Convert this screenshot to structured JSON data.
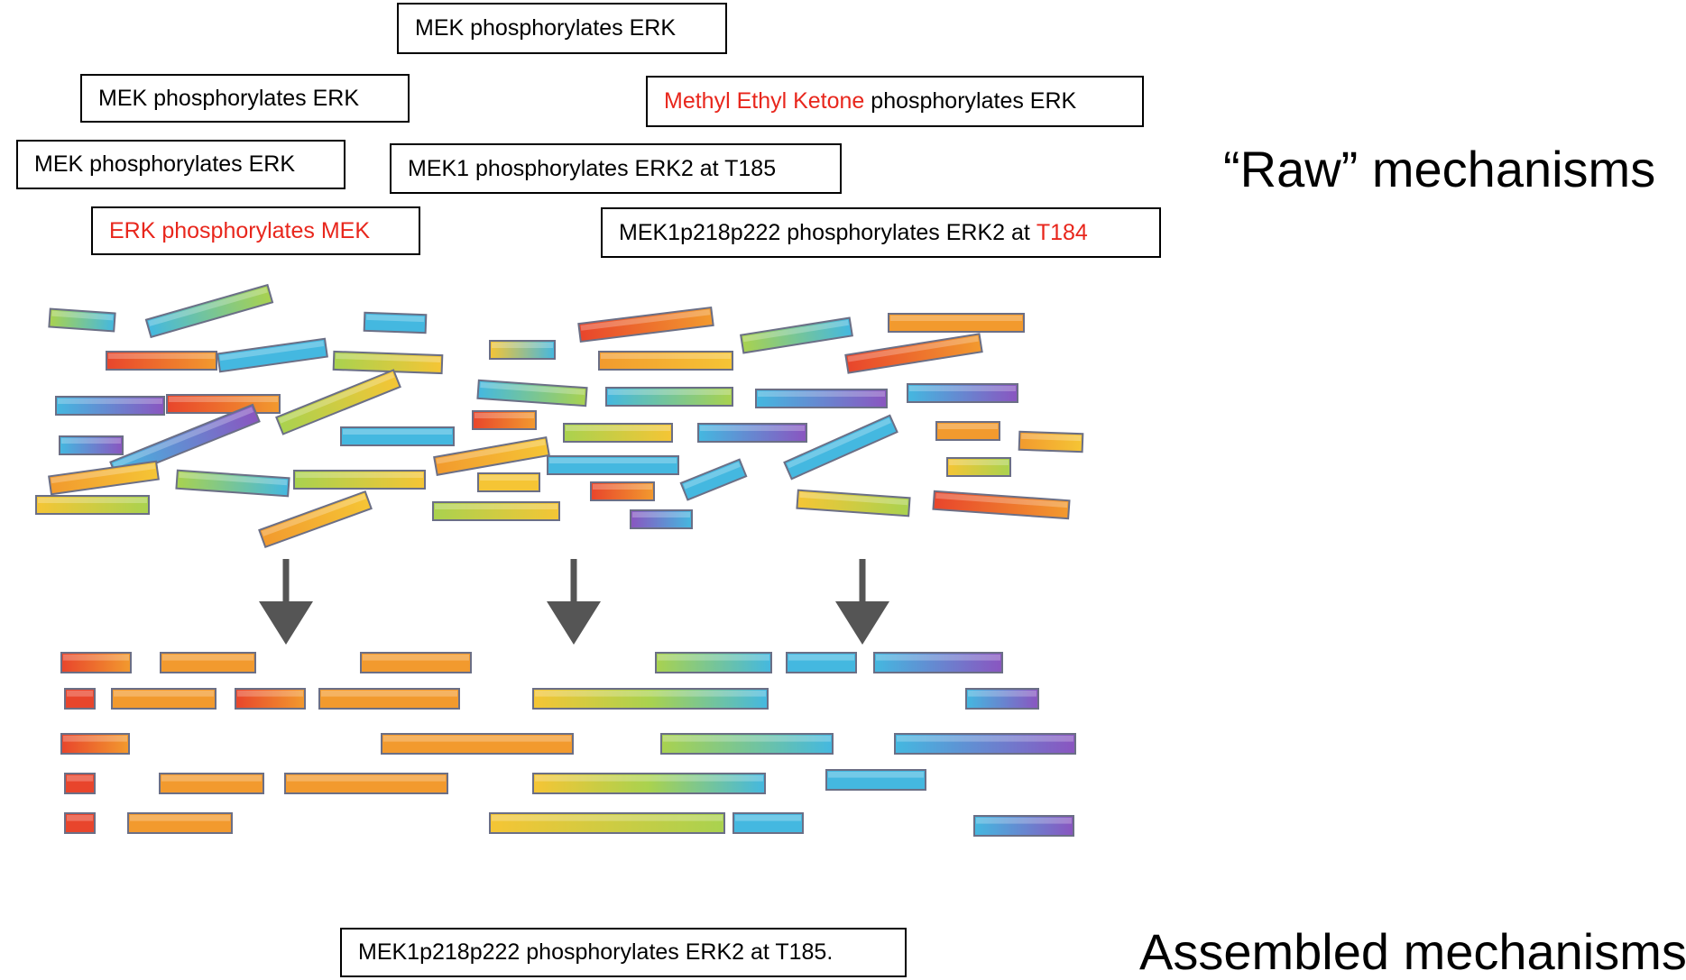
{
  "raw_label": "“Raw” mechanisms",
  "assembled_label": "Assembled mechanisms",
  "raw_statements": [
    {
      "parts": [
        {
          "text": "MEK phosphorylates ERK",
          "highlight": false
        }
      ]
    },
    {
      "parts": [
        {
          "text": "MEK phosphorylates ERK",
          "highlight": false
        }
      ]
    },
    {
      "parts": [
        {
          "text": "Methyl Ethyl Ketone",
          "highlight": true
        },
        {
          "text": " phosphorylates ERK",
          "highlight": false
        }
      ]
    },
    {
      "parts": [
        {
          "text": "MEK phosphorylates ERK",
          "highlight": false
        }
      ]
    },
    {
      "parts": [
        {
          "text": "MEK1 phosphorylates ERK2 at T185",
          "highlight": false
        }
      ]
    },
    {
      "parts": [
        {
          "text": "ERK phosphorylates MEK",
          "highlight": true
        }
      ]
    },
    {
      "parts": [
        {
          "text": "MEK1p218p222 phosphorylates ERK2 at ",
          "highlight": false
        },
        {
          "text": "T184",
          "highlight": true
        }
      ]
    }
  ],
  "assembled_statement": "MEK1p218p222 phosphorylates ERK2 at T185.",
  "colors": {
    "highlight": "#e8261c",
    "arrow": "#555555",
    "red": "#e8452c",
    "orange": "#f29a2e",
    "yellow": "#f5c535",
    "green": "#a9d24f",
    "blue": "#44b8e0",
    "purple": "#8a55c0"
  }
}
